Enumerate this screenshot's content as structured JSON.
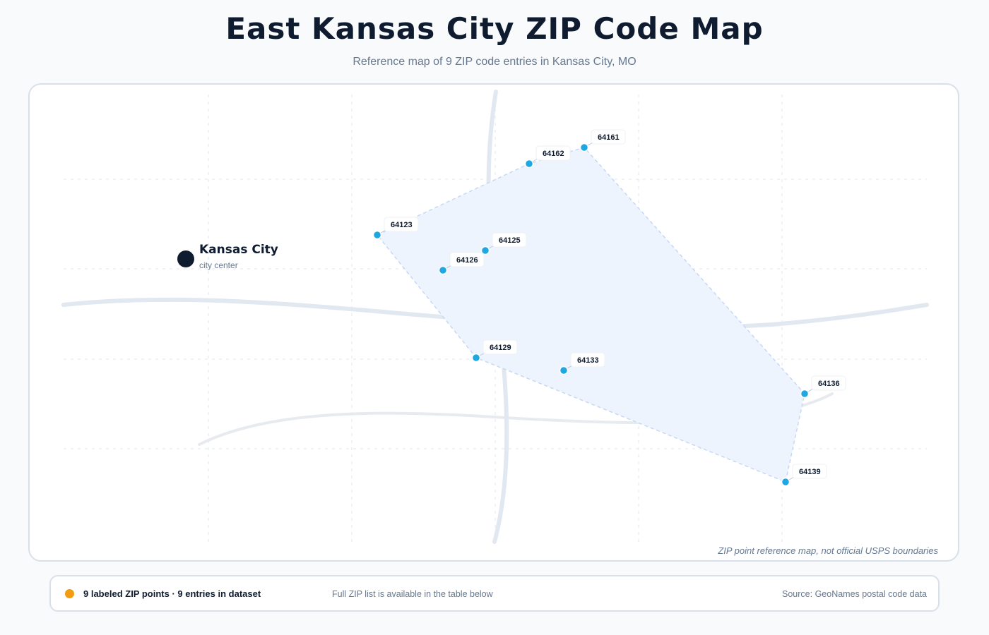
{
  "header": {
    "title": "East Kansas City ZIP Code Map",
    "subtitle": "Reference map of 9 ZIP code entries in Kansas City, MO"
  },
  "map": {
    "city": {
      "name": "Kansas City",
      "sublabel": "city center"
    },
    "zip_points": [
      {
        "zip": "64161"
      },
      {
        "zip": "64162"
      },
      {
        "zip": "64123"
      },
      {
        "zip": "64125"
      },
      {
        "zip": "64126"
      },
      {
        "zip": "64129"
      },
      {
        "zip": "64133"
      },
      {
        "zip": "64136"
      },
      {
        "zip": "64139"
      }
    ],
    "disclaimer": "ZIP point reference map, not official USPS boundaries",
    "colors": {
      "point": "#1ea7e1",
      "hull_fill": "#eef4fd",
      "hull_stroke": "#c6d8f3",
      "road": "#e2e8f0",
      "city_marker": "#0f1c30"
    }
  },
  "footer": {
    "count_text": "9 labeled ZIP points · 9 entries in dataset",
    "note": "Full ZIP list is available in the table below",
    "source": "Source: GeoNames postal code data",
    "legend_dot_color": "#f29c11"
  }
}
